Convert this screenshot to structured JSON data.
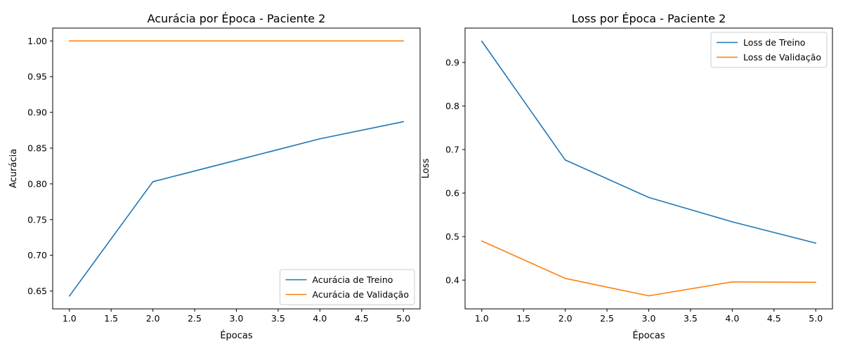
{
  "chart_data": [
    {
      "type": "line",
      "title": "Acurácia por Época - Paciente 2",
      "xlabel": "Épocas",
      "ylabel": "Acurácia",
      "xlim": [
        0.8,
        5.2
      ],
      "ylim": [
        0.625,
        1.018
      ],
      "xticks": [
        "1.0",
        "1.5",
        "2.0",
        "2.5",
        "3.0",
        "3.5",
        "4.0",
        "4.5",
        "5.0"
      ],
      "yticks": [
        "0.65",
        "0.70",
        "0.75",
        "0.80",
        "0.85",
        "0.90",
        "0.95",
        "1.00"
      ],
      "grid": false,
      "legend_position": "lower-right",
      "x": [
        1,
        2,
        3,
        4,
        5
      ],
      "series": [
        {
          "name": "Acurácia de Treino",
          "color": "#1f77b4",
          "values": [
            0.643,
            0.803,
            0.833,
            0.863,
            0.887
          ]
        },
        {
          "name": "Acurácia de Validação",
          "color": "#ff7f0e",
          "values": [
            1.0,
            1.0,
            1.0,
            1.0,
            1.0
          ]
        }
      ]
    },
    {
      "type": "line",
      "title": "Loss por Época - Paciente 2",
      "xlabel": "Épocas",
      "ylabel": "Loss",
      "xlim": [
        0.8,
        5.2
      ],
      "ylim": [
        0.334,
        0.979
      ],
      "xticks": [
        "1.0",
        "1.5",
        "2.0",
        "2.5",
        "3.0",
        "3.5",
        "4.0",
        "4.5",
        "5.0"
      ],
      "yticks": [
        "0.4",
        "0.5",
        "0.6",
        "0.7",
        "0.8",
        "0.9"
      ],
      "grid": false,
      "legend_position": "upper-right",
      "x": [
        1,
        2,
        3,
        4,
        5
      ],
      "series": [
        {
          "name": "Loss de Treino",
          "color": "#1f77b4",
          "values": [
            0.949,
            0.676,
            0.59,
            0.534,
            0.485
          ]
        },
        {
          "name": "Loss de Validação",
          "color": "#ff7f0e",
          "values": [
            0.49,
            0.404,
            0.364,
            0.396,
            0.395
          ]
        }
      ]
    }
  ]
}
